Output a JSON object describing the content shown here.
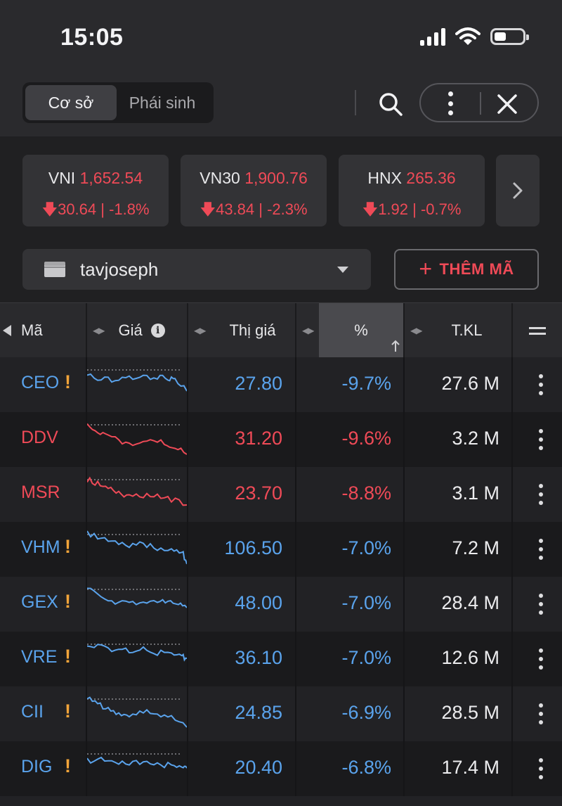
{
  "status_bar": {
    "time": "15:05"
  },
  "header": {
    "tabs": [
      {
        "label": "Cơ sở",
        "active": true
      },
      {
        "label": "Phái sinh",
        "active": false
      }
    ],
    "icons": [
      "search-icon",
      "more-vertical-icon",
      "close-icon"
    ]
  },
  "indices": [
    {
      "name": "VNI",
      "value": "1,652.54",
      "change": "30.64 | -1.8%"
    },
    {
      "name": "VN30",
      "value": "1,900.76",
      "change": "43.84 | -2.3%"
    },
    {
      "name": "HNX",
      "value": "265.36",
      "change": "1.92 | -0.7%"
    }
  ],
  "watchlist": {
    "name": "tavjoseph",
    "add_label": "THÊM MÃ"
  },
  "table": {
    "columns": {
      "symbol": "Mã",
      "price": "Giá",
      "last": "Thị giá",
      "pct": "%",
      "volume": "T.KL"
    },
    "sorted_column": "pct",
    "rows": [
      {
        "symbol": "CEO",
        "warn": "!",
        "last": "27.80",
        "pct": "-9.7%",
        "volume": "27.6 M",
        "color": "blue"
      },
      {
        "symbol": "DDV",
        "warn": "",
        "last": "31.20",
        "pct": "-9.6%",
        "volume": "3.2 M",
        "color": "red"
      },
      {
        "symbol": "MSR",
        "warn": "",
        "last": "23.70",
        "pct": "-8.8%",
        "volume": "3.1 M",
        "color": "red"
      },
      {
        "symbol": "VHM",
        "warn": "!",
        "last": "106.50",
        "pct": "-7.0%",
        "volume": "7.2 M",
        "color": "blue"
      },
      {
        "symbol": "GEX",
        "warn": "!",
        "last": "48.00",
        "pct": "-7.0%",
        "volume": "28.4 M",
        "color": "blue"
      },
      {
        "symbol": "VRE",
        "warn": "!",
        "last": "36.10",
        "pct": "-7.0%",
        "volume": "12.6 M",
        "color": "blue"
      },
      {
        "symbol": "CII",
        "warn": "!",
        "last": "24.85",
        "pct": "-6.9%",
        "volume": "28.5 M",
        "color": "blue"
      },
      {
        "symbol": "DIG",
        "warn": "!",
        "last": "20.40",
        "pct": "-6.8%",
        "volume": "17.4 M",
        "color": "blue"
      }
    ]
  },
  "colors": {
    "up_blue": "#5aa3ec",
    "down_red": "#ef4a57",
    "warning": "#f3a53a",
    "background": "#1b1b1d"
  }
}
